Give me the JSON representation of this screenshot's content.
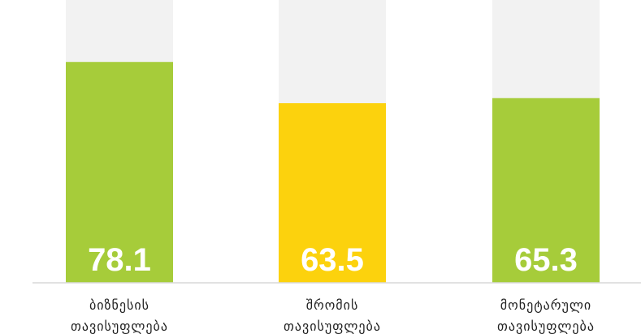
{
  "chart_data": {
    "type": "bar",
    "categories": [
      [
        "ბიზნესის",
        "თავისუფლება"
      ],
      [
        "შრომის",
        "თავისუფლება"
      ],
      [
        "მონეტარული",
        "თავისუფლება"
      ]
    ],
    "values": [
      78.1,
      63.5,
      65.3
    ],
    "value_labels": [
      "78.1",
      "63.5",
      "65.3"
    ],
    "ylim": [
      0,
      100
    ],
    "grid": false,
    "legend": "none",
    "bar_colors": [
      "#a6cc3a",
      "#fcd20d",
      "#a6cc3a"
    ],
    "track_color": "#f2f2f2",
    "baseline_color": "#d9d9d9"
  }
}
